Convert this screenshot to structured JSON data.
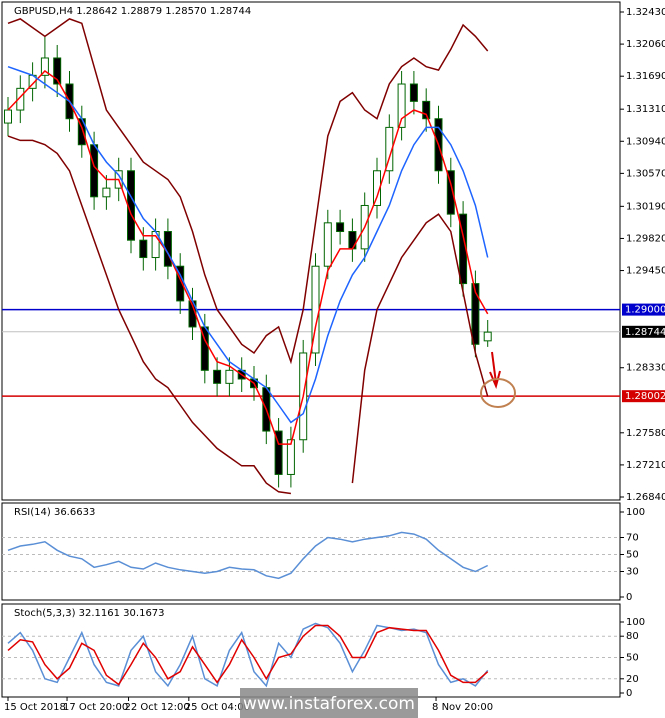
{
  "chart_data": [
    {
      "type": "candlestick",
      "title": "GBPUSD,H4 1.28642 1.28879 1.28570 1.28744",
      "open": [
        1.3115,
        1.313,
        1.3155,
        1.317,
        1.319,
        1.316,
        1.312,
        1.309,
        1.303,
        1.304,
        1.306,
        1.298,
        1.296,
        1.299,
        1.295,
        1.291,
        1.288,
        1.283,
        1.2815,
        1.283,
        1.282,
        1.281,
        1.276,
        1.271,
        1.275,
        1.285,
        1.295,
        1.3,
        1.299,
        1.297,
        1.302,
        1.306,
        1.311,
        1.316,
        1.314,
        1.312,
        1.306,
        1.301,
        1.293,
        1.2864
      ],
      "high": [
        1.3145,
        1.317,
        1.3185,
        1.3215,
        1.3205,
        1.3175,
        1.3135,
        1.3105,
        1.3055,
        1.3075,
        1.3075,
        1.2995,
        1.3005,
        1.3005,
        1.2965,
        1.2925,
        1.2895,
        1.2845,
        1.2845,
        1.2845,
        1.2835,
        1.2825,
        1.2775,
        1.2765,
        1.2865,
        1.2965,
        1.3015,
        1.3015,
        1.3005,
        1.3035,
        1.3075,
        1.3125,
        1.3175,
        1.3175,
        1.3155,
        1.3135,
        1.3075,
        1.3025,
        1.2945,
        1.2888
      ],
      "low": [
        1.31,
        1.3115,
        1.314,
        1.3155,
        1.3145,
        1.3105,
        1.3075,
        1.3015,
        1.3015,
        1.3025,
        1.2965,
        1.2945,
        1.2945,
        1.2935,
        1.2895,
        1.2865,
        1.2815,
        1.28,
        1.28,
        1.2805,
        1.2795,
        1.2745,
        1.2695,
        1.2695,
        1.2735,
        1.2835,
        1.2935,
        1.2975,
        1.2955,
        1.2955,
        1.3005,
        1.3045,
        1.3095,
        1.3125,
        1.3105,
        1.3045,
        1.2995,
        1.2915,
        1.2845,
        1.2857
      ],
      "close": [
        1.313,
        1.3155,
        1.317,
        1.319,
        1.316,
        1.312,
        1.309,
        1.303,
        1.304,
        1.306,
        1.298,
        1.296,
        1.299,
        1.295,
        1.291,
        1.288,
        1.283,
        1.2815,
        1.283,
        1.282,
        1.281,
        1.276,
        1.271,
        1.275,
        1.285,
        1.295,
        1.3,
        1.299,
        1.297,
        1.302,
        1.306,
        1.311,
        1.316,
        1.314,
        1.312,
        1.306,
        1.301,
        1.293,
        1.286,
        1.2874
      ],
      "up_color": "#006400",
      "down_color": "#006400",
      "series": [
        {
          "color": "#800000",
          "values": [
            1.323,
            1.3235,
            1.3225,
            1.3215,
            1.3225,
            1.3235,
            1.323,
            1.318,
            1.313,
            1.311,
            1.309,
            1.307,
            1.306,
            1.305,
            1.303,
            1.299,
            1.294,
            1.29,
            1.288,
            1.286,
            1.285,
            1.287,
            1.288,
            1.284,
            1.29,
            1.3,
            1.31,
            1.314,
            1.315,
            1.313,
            1.312,
            1.316,
            1.318,
            1.319,
            1.318,
            1.3176,
            1.32,
            1.3228,
            1.3215,
            1.3198
          ]
        },
        {
          "color": "#800000",
          "values": [
            1.31,
            1.3095,
            1.3095,
            1.309,
            1.308,
            1.306,
            1.302,
            1.298,
            1.294,
            1.29,
            1.287,
            1.284,
            1.282,
            1.281,
            1.279,
            1.277,
            1.2755,
            1.274,
            1.273,
            1.272,
            1.272,
            1.27,
            1.269,
            1.2688,
            null,
            null,
            null,
            null,
            1.27,
            1.283,
            1.29,
            1.293,
            1.296,
            1.298,
            1.3,
            1.301,
            1.299,
            1.292,
            1.285,
            1.28
          ]
        },
        {
          "color": "#ff0000",
          "values": [
            1.313,
            1.3145,
            1.316,
            1.3175,
            1.3165,
            1.314,
            1.311,
            1.3065,
            1.305,
            1.305,
            1.301,
            1.2985,
            1.2985,
            1.2965,
            1.2935,
            1.2905,
            1.2865,
            1.284,
            1.2835,
            1.2825,
            1.2815,
            1.2785,
            1.2745,
            1.2745,
            1.28,
            1.288,
            1.2945,
            1.297,
            1.297,
            1.2995,
            1.303,
            1.3075,
            1.312,
            1.313,
            1.3125,
            1.309,
            1.3045,
            1.2985,
            1.292,
            1.2895
          ]
        },
        {
          "color": "#1e64ff",
          "values": [
            1.318,
            1.3175,
            1.317,
            1.316,
            1.315,
            1.314,
            1.312,
            1.309,
            1.307,
            1.3055,
            1.303,
            1.3005,
            1.299,
            1.2965,
            1.294,
            1.291,
            1.288,
            1.286,
            1.284,
            1.283,
            1.282,
            1.281,
            1.279,
            1.277,
            1.278,
            1.282,
            1.287,
            1.291,
            1.294,
            1.296,
            1.299,
            1.302,
            1.306,
            1.309,
            1.311,
            1.311,
            1.309,
            1.306,
            1.302,
            1.296
          ]
        }
      ],
      "ylim": [
        1.2684,
        1.3243
      ],
      "yticks": [
        {
          "value": 1.3243,
          "label": "1.32430"
        },
        {
          "value": 1.3206,
          "label": "1.32060"
        },
        {
          "value": 1.3169,
          "label": "1.31690"
        },
        {
          "value": 1.3131,
          "label": "1.31310"
        },
        {
          "value": 1.3094,
          "label": "1.30940"
        },
        {
          "value": 1.3057,
          "label": "1.30570"
        },
        {
          "value": 1.3019,
          "label": "1.30190"
        },
        {
          "value": 1.2982,
          "label": "1.29820"
        },
        {
          "value": 1.2945,
          "label": "1.29450"
        },
        {
          "value": 1.2833,
          "label": "1.28330"
        },
        {
          "value": 1.2758,
          "label": "1.27580"
        },
        {
          "value": 1.2721,
          "label": "1.27210"
        },
        {
          "value": 1.2684,
          "label": "1.26840"
        }
      ],
      "hlines": [
        {
          "value": 1.29,
          "label": "1.29000",
          "color": "#0000cc"
        },
        {
          "value": 1.28002,
          "label": "1.28002",
          "color": "#d40000"
        }
      ],
      "last_price": {
        "value": 1.28744,
        "label": "1.28744"
      },
      "grid": false
    },
    {
      "type": "line",
      "title": "RSI(14) 36.6633",
      "series": [
        {
          "color": "#5a8fd6",
          "values": [
            55,
            60,
            62,
            65,
            55,
            48,
            45,
            35,
            38,
            42,
            35,
            33,
            40,
            35,
            32,
            30,
            28,
            30,
            35,
            33,
            32,
            25,
            22,
            28,
            45,
            60,
            70,
            68,
            65,
            68,
            70,
            72,
            76,
            74,
            68,
            55,
            45,
            35,
            30,
            37
          ]
        }
      ],
      "ylim": [
        0,
        100
      ],
      "yticks": [
        100,
        70,
        50,
        30,
        0
      ],
      "grid": true
    },
    {
      "type": "line",
      "title": "Stoch(5,3,3) 32.1161 30.1673",
      "series": [
        {
          "color": "#5a8fd6",
          "values": [
            70,
            85,
            60,
            20,
            15,
            50,
            85,
            40,
            15,
            10,
            60,
            80,
            30,
            10,
            40,
            80,
            20,
            10,
            60,
            85,
            30,
            10,
            70,
            50,
            90,
            98,
            92,
            70,
            30,
            60,
            95,
            92,
            88,
            90,
            85,
            40,
            15,
            20,
            10,
            32
          ]
        },
        {
          "color": "#e00000",
          "values": [
            60,
            75,
            72,
            40,
            20,
            35,
            70,
            60,
            25,
            12,
            40,
            70,
            50,
            20,
            30,
            65,
            40,
            15,
            40,
            75,
            50,
            20,
            50,
            55,
            80,
            95,
            95,
            80,
            50,
            50,
            85,
            92,
            90,
            88,
            88,
            60,
            25,
            15,
            15,
            30
          ]
        }
      ],
      "ylim": [
        0,
        100
      ],
      "yticks": [
        100,
        80,
        50,
        20,
        0
      ],
      "grid": true,
      "xticks": [
        {
          "value": 0,
          "label": "15 Oct 2018"
        },
        {
          "value": 4.8,
          "label": "17 Oct 20:00"
        },
        {
          "value": 9.8,
          "label": "22 Oct 12:00"
        },
        {
          "value": 14.7,
          "label": "25 Oct 04:00"
        },
        {
          "value": 34.8,
          "label": "8 Nov 20:00"
        }
      ]
    }
  ],
  "watermark": "www.instaforex.com"
}
